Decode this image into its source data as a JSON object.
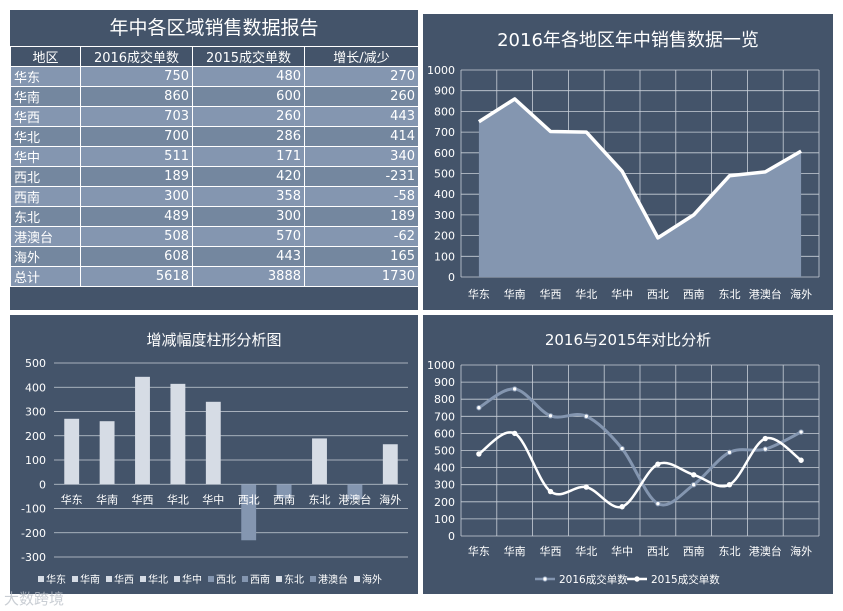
{
  "regions": [
    "华东",
    "华南",
    "华西",
    "华北",
    "华中",
    "西北",
    "西南",
    "东北",
    "港澳台",
    "海外"
  ],
  "table": {
    "title": "年中各区域销售数据报告",
    "headers": [
      "地区",
      "2016成交单数",
      "2015成交单数",
      "增长/减少"
    ],
    "rows": [
      [
        "华东",
        "750",
        "480",
        "270"
      ],
      [
        "华南",
        "860",
        "600",
        "260"
      ],
      [
        "华西",
        "703",
        "260",
        "443"
      ],
      [
        "华北",
        "700",
        "286",
        "414"
      ],
      [
        "华中",
        "511",
        "171",
        "340"
      ],
      [
        "西北",
        "189",
        "420",
        "-231"
      ],
      [
        "西南",
        "300",
        "358",
        "-58"
      ],
      [
        "东北",
        "489",
        "300",
        "189"
      ],
      [
        "港澳台",
        "508",
        "570",
        "-62"
      ],
      [
        "海外",
        "608",
        "443",
        "165"
      ]
    ],
    "total": [
      "总计",
      "5618",
      "3888",
      "1730"
    ]
  },
  "chart_data": [
    {
      "type": "area",
      "title": "2016年各地区年中销售数据一览",
      "categories": [
        "华东",
        "华南",
        "华西",
        "华北",
        "华中",
        "西北",
        "西南",
        "东北",
        "港澳台",
        "海外"
      ],
      "series": [
        {
          "name": "2016成交单数",
          "values": [
            750,
            860,
            703,
            700,
            511,
            189,
            300,
            489,
            508,
            608
          ]
        }
      ],
      "ylim": [
        0,
        1000
      ],
      "yticks": [
        0,
        100,
        200,
        300,
        400,
        500,
        600,
        700,
        800,
        900,
        1000
      ],
      "grid": true,
      "colors": {
        "fill": "#8496b0",
        "line": "#ffffff"
      }
    },
    {
      "type": "bar",
      "title": "增减幅度柱形分析图",
      "categories": [
        "华东",
        "华南",
        "华西",
        "华北",
        "华中",
        "西北",
        "西南",
        "东北",
        "港澳台",
        "海外"
      ],
      "values": [
        270,
        260,
        443,
        414,
        340,
        -231,
        -58,
        189,
        -62,
        165
      ],
      "ylim": [
        -300,
        500
      ],
      "yticks": [
        -300,
        -200,
        -100,
        0,
        100,
        200,
        300,
        400,
        500
      ],
      "legend": "bottom",
      "colors": {
        "positive": "#d6dce5",
        "negative": "#8496b0"
      }
    },
    {
      "type": "line",
      "title": "2016与2015年对比分析",
      "categories": [
        "华东",
        "华南",
        "华西",
        "华北",
        "华中",
        "西北",
        "西南",
        "东北",
        "港澳台",
        "海外"
      ],
      "series": [
        {
          "name": "2016成交单数",
          "values": [
            750,
            860,
            703,
            700,
            511,
            189,
            300,
            489,
            508,
            608
          ],
          "color": "#8496b0"
        },
        {
          "name": "2015成交单数",
          "values": [
            480,
            600,
            260,
            286,
            171,
            420,
            358,
            300,
            570,
            443
          ],
          "color": "#ffffff"
        }
      ],
      "ylim": [
        0,
        1000
      ],
      "yticks": [
        0,
        100,
        200,
        300,
        400,
        500,
        600,
        700,
        800,
        900,
        1000
      ],
      "grid": true,
      "legend": "bottom"
    }
  ],
  "watermark": "大数跨境"
}
